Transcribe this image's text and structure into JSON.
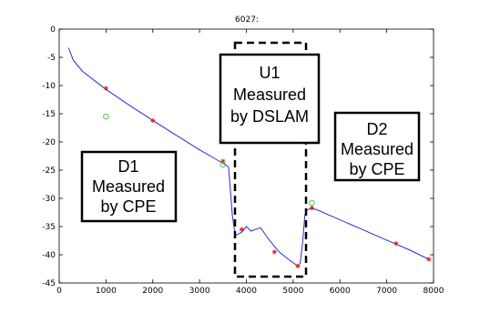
{
  "chart_data": {
    "type": "line",
    "title": "6027:",
    "xlim": [
      0,
      8000
    ],
    "ylim": [
      -45,
      0
    ],
    "xticks": [
      "0",
      "1000",
      "2000",
      "3000",
      "4000",
      "5000",
      "6000",
      "7000",
      "8000"
    ],
    "yticks": [
      "0",
      "-5",
      "-10",
      "-15",
      "-20",
      "-25",
      "-30",
      "-35",
      "-40",
      "-45"
    ],
    "grid": false,
    "colors": {
      "line": "#2b2bd6",
      "red_marker": "#e02020",
      "green_marker": "#33cc33",
      "box_stroke": "#000000"
    },
    "series": [
      {
        "x": [
          200,
          300,
          500,
          1000,
          1500,
          2000,
          2500,
          3000,
          3400,
          3550,
          3620,
          3700,
          3760,
          3900,
          4000,
          4100,
          4300,
          4500,
          4700,
          4900,
          5100,
          5150,
          5200,
          5250,
          5300,
          5400,
          5500,
          6000,
          6500,
          7000,
          7500,
          7900
        ],
        "y": [
          -3.3,
          -5.5,
          -7.5,
          -10.7,
          -13.5,
          -16.2,
          -18.8,
          -21.4,
          -23.3,
          -24.0,
          -24.5,
          -33.0,
          -36.6,
          -36.0,
          -35.0,
          -35.8,
          -35.2,
          -37.5,
          -39.5,
          -40.8,
          -42.0,
          -41.5,
          -38.0,
          -33.0,
          -32.0,
          -31.8,
          -32.0,
          -33.8,
          -35.6,
          -37.4,
          -39.2,
          -40.8
        ]
      }
    ],
    "markers_red": {
      "x": [
        1000,
        2000,
        3500,
        3900,
        4600,
        5100,
        5400,
        7200,
        7900
      ],
      "y": [
        -10.5,
        -16.2,
        -23.4,
        -35.5,
        -39.5,
        -42.0,
        -31.7,
        -38.0,
        -40.8
      ]
    },
    "markers_green": {
      "x": [
        1000,
        3500,
        5400
      ],
      "y": [
        -15.5,
        -24.0,
        -30.8
      ]
    },
    "annotations": [
      {
        "lines": [
          "D1",
          "Measured",
          "by CPE"
        ]
      },
      {
        "lines": [
          "U1",
          "Measured",
          "by DSLAM"
        ]
      },
      {
        "lines": [
          "D2",
          "Measured",
          "by CPE"
        ]
      }
    ]
  }
}
